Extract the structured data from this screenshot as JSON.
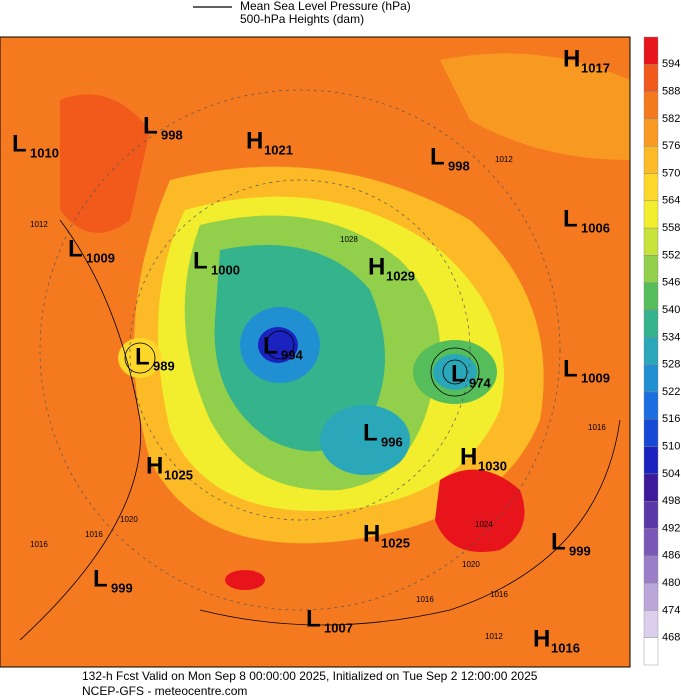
{
  "legend": {
    "items": [
      "Mean Sea Level Pressure (hPa)",
      "500-hPa Heights (dam)"
    ]
  },
  "colorbar": {
    "ticks": [
      594,
      588,
      582,
      576,
      570,
      564,
      558,
      552,
      546,
      540,
      534,
      528,
      522,
      516,
      510,
      504,
      498,
      492,
      486,
      480,
      474,
      468
    ],
    "colors": [
      "#e8141c",
      "#f25a1c",
      "#f57a1f",
      "#f89a22",
      "#fbba26",
      "#fdd82b",
      "#f3ee2d",
      "#c8e33a",
      "#92cf4a",
      "#55bd5a",
      "#35b38d",
      "#2aa7b8",
      "#2190d2",
      "#1a6ee0",
      "#1549d6",
      "#1a22c0",
      "#3b1a9c",
      "#5a38a8",
      "#7b58b8",
      "#9b7ec8",
      "#bba6da",
      "#dccfee",
      "#ffffff"
    ]
  },
  "centers": [
    {
      "kind": "H",
      "value": "1017"
    },
    {
      "kind": "L",
      "value": "998"
    },
    {
      "kind": "H",
      "value": "1021"
    },
    {
      "kind": "L",
      "value": "1010"
    },
    {
      "kind": "L",
      "value": "998"
    },
    {
      "kind": "L",
      "value": "1006"
    },
    {
      "kind": "L",
      "value": "1009"
    },
    {
      "kind": "L",
      "value": "1000"
    },
    {
      "kind": "H",
      "value": "1029"
    },
    {
      "kind": "L",
      "value": "989"
    },
    {
      "kind": "L",
      "value": "994"
    },
    {
      "kind": "L",
      "value": "974"
    },
    {
      "kind": "L",
      "value": "1009"
    },
    {
      "kind": "L",
      "value": "996"
    },
    {
      "kind": "H",
      "value": "1025"
    },
    {
      "kind": "H",
      "value": "1030"
    },
    {
      "kind": "H",
      "value": "1025"
    },
    {
      "kind": "L",
      "value": "999"
    },
    {
      "kind": "L",
      "value": "999"
    },
    {
      "kind": "L",
      "value": "1007"
    },
    {
      "kind": "H",
      "value": "1016"
    }
  ],
  "contour_labels": [
    "1012",
    "1016",
    "1020",
    "1016",
    "1012",
    "1024",
    "1020",
    "1016",
    "1016",
    "1012",
    "1016",
    "1028"
  ],
  "footer": {
    "line1": "132-h Fcst Valid on Mon Sep  8 00:00:00 2025, Initialized on Tue Sep  2 12:00:00 2025",
    "line2": "NCEP-GFS  - meteocentre.com"
  }
}
